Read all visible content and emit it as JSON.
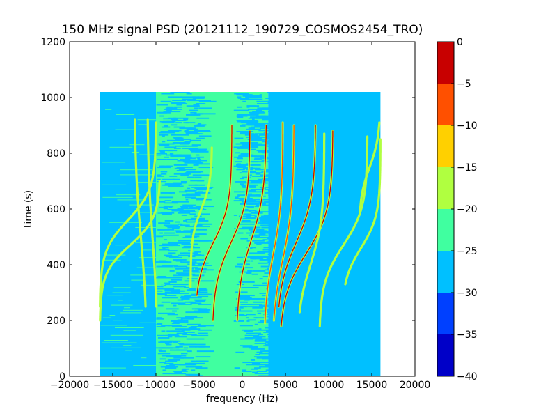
{
  "chart_data": {
    "type": "heatmap",
    "title": "150 MHz signal PSD (20121112_190729_COSMOS2454_TRO)",
    "xlabel": "frequency (Hz)",
    "ylabel": "time (s)",
    "xlim": [
      -20000,
      20000
    ],
    "ylim": [
      0,
      1200
    ],
    "x_ticks": [
      -20000,
      -15000,
      -10000,
      -5000,
      0,
      5000,
      10000,
      15000,
      20000
    ],
    "y_ticks": [
      0,
      200,
      400,
      600,
      800,
      1000,
      1200
    ],
    "x_tick_labels": [
      "−20000",
      "−15000",
      "−10000",
      "−5000",
      "0",
      "5000",
      "10000",
      "15000",
      "20000"
    ],
    "y_tick_labels": [
      "0",
      "200",
      "400",
      "600",
      "800",
      "1000",
      "1200"
    ],
    "data_extent": {
      "x": [
        -16500,
        16000
      ],
      "y": [
        0,
        1020
      ]
    },
    "background_level_regions": [
      {
        "x": [
          -16500,
          -10000
        ],
        "level": -27.5
      },
      {
        "x": [
          -10000,
          3000
        ],
        "level": -22.5,
        "description_level": "mixed -22.5 / -27.5 speckle"
      },
      {
        "x": [
          3000,
          16000
        ],
        "level": -27.5
      }
    ],
    "colorbar": {
      "levels": [
        -40,
        -35,
        -30,
        -25,
        -20,
        -15,
        -10,
        -5,
        0
      ],
      "tick_labels": [
        "−40",
        "−35",
        "−30",
        "−25",
        "−20",
        "−15",
        "−10",
        "−5",
        "0"
      ],
      "colors": [
        "#0000c8",
        "#0040ff",
        "#00c0ff",
        "#40ffa0",
        "#b0ff40",
        "#ffd000",
        "#ff5000",
        "#c80000"
      ]
    },
    "tracks": [
      {
        "x0": -16500,
        "x1": -10000,
        "yc": 560,
        "top": 910,
        "bottom": 250,
        "k": 12,
        "peak": -17.5
      },
      {
        "x0": -16500,
        "x1": -9500,
        "yc": 470,
        "top": 700,
        "bottom": 200,
        "k": 10,
        "peak": -17.5
      },
      {
        "x0": -11000,
        "x1": -12500,
        "yc": 500,
        "top": 920,
        "bottom": 250,
        "k": 5,
        "peak": -17.5
      },
      {
        "x0": -9800,
        "x1": -11000,
        "yc": 500,
        "top": 920,
        "bottom": 250,
        "k": 5,
        "peak": -17.5
      },
      {
        "x0": -6000,
        "x1": -3500,
        "yc": 600,
        "top": 820,
        "bottom": 320,
        "k": 10,
        "peak": -17.5
      },
      {
        "x0": -5500,
        "x1": -1200,
        "yc": 480,
        "top": 900,
        "bottom": 290,
        "k": 9,
        "peak": -2.5
      },
      {
        "x0": -3500,
        "x1": 900,
        "yc": 480,
        "top": 880,
        "bottom": 200,
        "k": 9,
        "peak": -2.5
      },
      {
        "x0": -700,
        "x1": 2800,
        "yc": 490,
        "top": 900,
        "bottom": 200,
        "k": 8,
        "peak": -2.5
      },
      {
        "x0": 2500,
        "x1": 4700,
        "yc": 440,
        "top": 910,
        "bottom": 190,
        "k": 8,
        "peak": -7.5
      },
      {
        "x0": 3400,
        "x1": 6000,
        "yc": 420,
        "top": 900,
        "bottom": 200,
        "k": 7,
        "peak": -7.5
      },
      {
        "x0": 4000,
        "x1": 8500,
        "yc": 480,
        "top": 900,
        "bottom": 250,
        "k": 8,
        "peak": -2.5
      },
      {
        "x0": 4300,
        "x1": 10500,
        "yc": 440,
        "top": 880,
        "bottom": 180,
        "k": 9,
        "peak": -2.5
      },
      {
        "x0": 6300,
        "x1": 9500,
        "yc": 400,
        "top": 870,
        "bottom": 230,
        "k": 8,
        "peak": -17.5
      },
      {
        "x0": 8900,
        "x1": 14500,
        "yc": 470,
        "top": 860,
        "bottom": 180,
        "k": 10,
        "peak": -17.5
      },
      {
        "x0": 11500,
        "x1": 16000,
        "yc": 460,
        "top": 850,
        "bottom": 330,
        "k": 9,
        "peak": -17.5
      },
      {
        "x0": 13500,
        "x1": 16000,
        "yc": 750,
        "top": 910,
        "bottom": 580,
        "k": 6,
        "peak": -17.5
      }
    ]
  }
}
